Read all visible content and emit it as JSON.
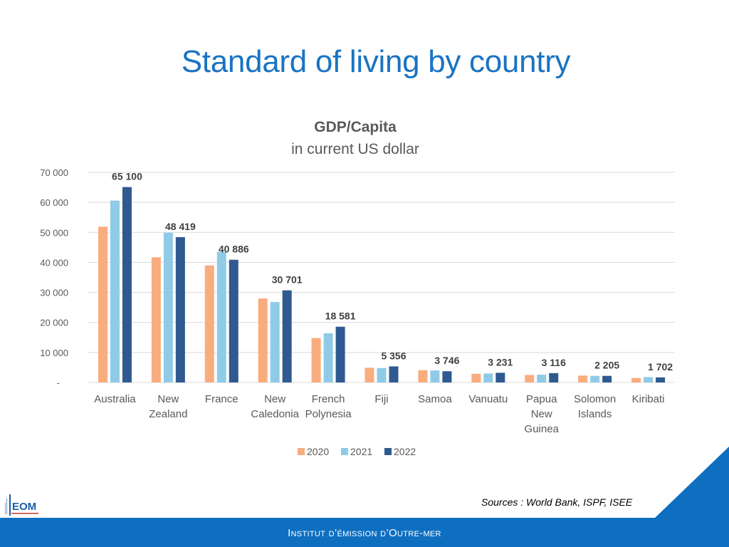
{
  "slide": {
    "title": "Standard of living by country",
    "sources": "Sources : World Bank, ISPF, ISEE",
    "footer": "Institut d’émission d’Outre-mer",
    "logo_text": "EOM"
  },
  "colors": {
    "series_2020": "#f9ad7e",
    "series_2021": "#8fcbe6",
    "series_2022": "#2f5a8f",
    "title_blue": "#1a73c2",
    "footer_blue": "#0e6fc1"
  },
  "chart_data": {
    "type": "bar",
    "title": "GDP/Capita",
    "subtitle": "in current US dollar",
    "xlabel": "",
    "ylabel": "",
    "ylim": [
      0,
      70000
    ],
    "y_ticks": [
      0,
      10000,
      20000,
      30000,
      40000,
      50000,
      60000,
      70000
    ],
    "y_tick_labels": [
      "-",
      "10 000",
      "20 000",
      "30 000",
      "40 000",
      "50 000",
      "60 000",
      "70 000"
    ],
    "grid": true,
    "legend_position": "bottom",
    "categories": [
      [
        "Australia"
      ],
      [
        "New",
        "Zealand"
      ],
      [
        "France"
      ],
      [
        "New",
        "Caledonia"
      ],
      [
        "French",
        "Polynesia"
      ],
      [
        "Fiji"
      ],
      [
        "Samoa"
      ],
      [
        "Vanuatu"
      ],
      [
        "Papua",
        "New",
        "Guinea"
      ],
      [
        "Solomon",
        "Islands"
      ],
      [
        "Kiribati"
      ]
    ],
    "series": [
      {
        "name": "2020",
        "values": [
          51900,
          41700,
          39000,
          28000,
          14800,
          4900,
          4100,
          2900,
          2500,
          2300,
          1500
        ]
      },
      {
        "name": "2021",
        "values": [
          60600,
          49900,
          43500,
          26800,
          16400,
          4800,
          4000,
          3000,
          2600,
          2200,
          1800
        ]
      },
      {
        "name": "2022",
        "values": [
          65100,
          48419,
          40886,
          30701,
          18581,
          5356,
          3746,
          3231,
          3116,
          2205,
          1702
        ]
      }
    ],
    "data_labels": [
      "65 100",
      "48 419",
      "40 886",
      "30 701",
      "18 581",
      "5 356",
      "3 746",
      "3 231",
      "3 116",
      "2 205",
      "1 702"
    ]
  }
}
